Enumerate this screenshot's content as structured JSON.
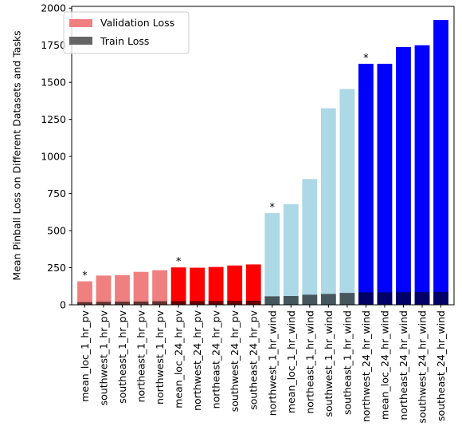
{
  "chart_data": {
    "type": "bar",
    "title": "",
    "xlabel": "",
    "ylabel": "Mean Pinball Loss on Different Datasets and Tasks",
    "ylim": [
      0,
      2000
    ],
    "yticks": [
      0,
      250,
      500,
      750,
      1000,
      1250,
      1500,
      1750,
      2000
    ],
    "grid": false,
    "legend_position": "top-left",
    "categories": [
      "mean_loc_1_hr_pv",
      "southwest_1_hr_pv",
      "southeast_1_hr_pv",
      "northeast_1_hr_pv",
      "northwest_1_hr_pv",
      "mean_loc_24_hr_pv",
      "northwest_24_hr_pv",
      "northeast_24_hr_pv",
      "southwest_24_hr_pv",
      "southeast_24_hr_pv",
      "northwest_1_hr_wind",
      "mean_loc_1_hr_wind",
      "northeast_1_hr_wind",
      "southwest_1_hr_wind",
      "southeast_1_hr_wind",
      "northwest_24_hr_wind",
      "mean_loc_24_hr_wind",
      "northeast_24_hr_wind",
      "southwest_24_hr_wind",
      "southeast_24_hr_wind"
    ],
    "series": [
      {
        "name": "Validation Loss",
        "legend_color": "#f08080",
        "values": [
          158,
          197,
          200,
          222,
          233,
          252,
          250,
          255,
          265,
          272,
          618,
          678,
          848,
          1325,
          1455,
          1625,
          1625,
          1738,
          1750,
          1920
        ]
      },
      {
        "name": "Train Loss",
        "legend_color": "#666666",
        "values": [
          18,
          20,
          21,
          22,
          24,
          25,
          25,
          25,
          26,
          27,
          57,
          59,
          68,
          73,
          80,
          84,
          84,
          85,
          86,
          87
        ]
      }
    ],
    "val_colors": [
      "#f08080",
      "#f08080",
      "#f08080",
      "#f08080",
      "#f08080",
      "#ff0000",
      "#ff0000",
      "#ff0000",
      "#ff0000",
      "#ff0000",
      "#add8e6",
      "#add8e6",
      "#add8e6",
      "#add8e6",
      "#add8e6",
      "#0000ff",
      "#0000ff",
      "#0000ff",
      "#0000ff",
      "#0000ff"
    ],
    "annotations": [
      {
        "category": "mean_loc_1_hr_pv",
        "text": "*"
      },
      {
        "category": "mean_loc_24_hr_pv",
        "text": "*"
      },
      {
        "category": "northwest_1_hr_wind",
        "text": "*"
      },
      {
        "category": "northwest_24_hr_wind",
        "text": "*"
      }
    ]
  }
}
